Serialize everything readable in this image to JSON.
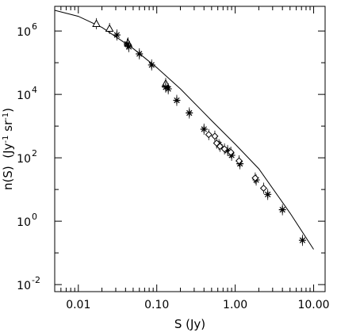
{
  "chart_data": {
    "type": "scatter",
    "xlabel": "S (Jy)",
    "ylabel": "n(S)  (Jy",
    "ylabel_sup1": "-1",
    "ylabel_mid": " sr",
    "ylabel_sup2": "-1",
    "ylabel_end": ")",
    "x_scale": "log",
    "y_scale": "log",
    "xlim": [
      0.005,
      14
    ],
    "ylim": [
      0.006,
      6000000
    ],
    "x_ticks": [
      {
        "value": 0.01,
        "label": "0.01"
      },
      {
        "value": 0.1,
        "label": "0.10"
      },
      {
        "value": 1,
        "label": "1.00"
      },
      {
        "value": 10,
        "label": "10.00"
      }
    ],
    "y_ticks": [
      {
        "value": 0.01,
        "base": "10",
        "exp": "-2"
      },
      {
        "value": 1,
        "base": "10",
        "exp": "0"
      },
      {
        "value": 100,
        "base": "10",
        "exp": "2"
      },
      {
        "value": 10000,
        "base": "10",
        "exp": "4"
      },
      {
        "value": 1000000,
        "base": "10",
        "exp": "6"
      }
    ],
    "grid": false,
    "series": [
      {
        "marker": "triangle",
        "points": [
          {
            "x": 0.017,
            "y": 1700000
          },
          {
            "x": 0.025,
            "y": 1200000
          },
          {
            "x": 0.043,
            "y": 420000
          },
          {
            "x": 0.13,
            "y": 22000
          }
        ]
      },
      {
        "marker": "asterisk",
        "points": [
          {
            "x": 0.031,
            "y": 750000
          },
          {
            "x": 0.042,
            "y": 390000
          },
          {
            "x": 0.044,
            "y": 320000
          },
          {
            "x": 0.06,
            "y": 190000
          },
          {
            "x": 0.086,
            "y": 85000
          },
          {
            "x": 0.13,
            "y": 17000
          },
          {
            "x": 0.14,
            "y": 15000
          },
          {
            "x": 0.18,
            "y": 6500
          },
          {
            "x": 0.26,
            "y": 2600
          },
          {
            "x": 0.4,
            "y": 800
          },
          {
            "x": 0.62,
            "y": 260
          },
          {
            "x": 0.8,
            "y": 170
          },
          {
            "x": 0.9,
            "y": 120
          },
          {
            "x": 1.15,
            "y": 65
          },
          {
            "x": 1.85,
            "y": 20
          },
          {
            "x": 2.6,
            "y": 7
          },
          {
            "x": 4.0,
            "y": 2.3
          },
          {
            "x": 7.2,
            "y": 0.25
          }
        ]
      },
      {
        "marker": "diamond",
        "points": [
          {
            "x": 0.46,
            "y": 540
          },
          {
            "x": 0.55,
            "y": 480
          },
          {
            "x": 0.58,
            "y": 290
          },
          {
            "x": 0.64,
            "y": 230
          },
          {
            "x": 0.73,
            "y": 190
          },
          {
            "x": 0.88,
            "y": 150
          },
          {
            "x": 1.12,
            "y": 80
          },
          {
            "x": 1.8,
            "y": 23
          },
          {
            "x": 2.3,
            "y": 11
          }
        ]
      }
    ],
    "fit_curve": [
      {
        "x": 0.005,
        "y": 4500000
      },
      {
        "x": 0.01,
        "y": 2900000
      },
      {
        "x": 0.02,
        "y": 1300000
      },
      {
        "x": 0.05,
        "y": 280000
      },
      {
        "x": 0.1,
        "y": 70000
      },
      {
        "x": 0.2,
        "y": 15000
      },
      {
        "x": 0.5,
        "y": 1500
      },
      {
        "x": 1,
        "y": 270
      },
      {
        "x": 2,
        "y": 45
      },
      {
        "x": 5,
        "y": 1.8
      },
      {
        "x": 10,
        "y": 0.13
      }
    ]
  }
}
